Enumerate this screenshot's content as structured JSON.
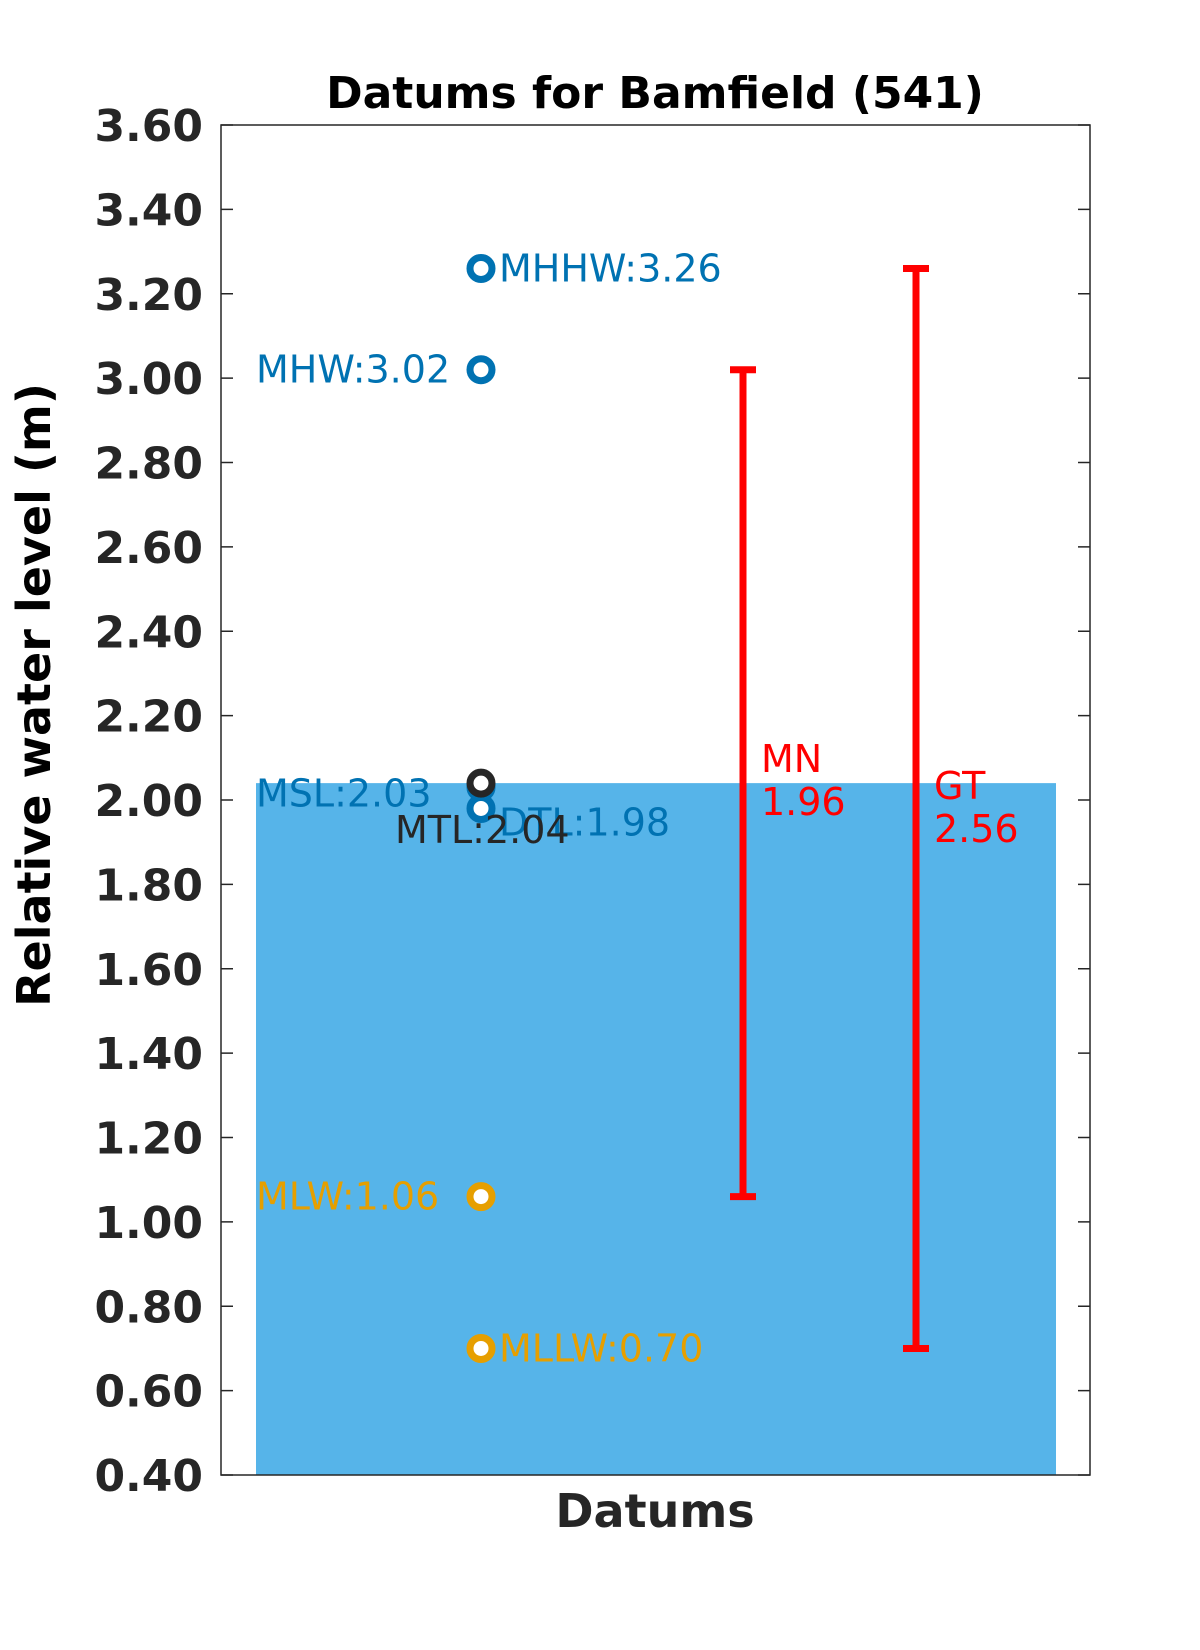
{
  "chart_data": {
    "type": "bar",
    "title": "Datums for Bamfield (541)",
    "xlabel": "Datums",
    "ylabel": "Relative water level (m)",
    "ylim": [
      0.4,
      3.6
    ],
    "yticks": [
      "0.40",
      "0.60",
      "0.80",
      "1.00",
      "1.20",
      "1.40",
      "1.60",
      "1.80",
      "2.00",
      "2.20",
      "2.40",
      "2.60",
      "2.80",
      "3.00",
      "3.20",
      "3.40",
      "3.60"
    ],
    "bar": {
      "value": 2.04,
      "color": "#56B4E9"
    },
    "datums": [
      {
        "name": "MHHW",
        "value": 3.26,
        "label": "MHHW:3.26",
        "color": "#0072B2",
        "label_side": "right"
      },
      {
        "name": "MHW",
        "value": 3.02,
        "label": "MHW:3.02",
        "color": "#0072B2",
        "label_side": "left"
      },
      {
        "name": "MSL",
        "value": 2.03,
        "label": "MSL:2.03",
        "color": "#0072B2",
        "label_side": "left"
      },
      {
        "name": "DTL",
        "value": 1.98,
        "label": "DTL:1.98",
        "color": "#0072B2",
        "label_side": "right"
      },
      {
        "name": "MTL",
        "value": 2.04,
        "label": "MTL:2.04",
        "color": "#262626",
        "label_side": "below"
      },
      {
        "name": "MLW",
        "value": 1.06,
        "label": "MLW:1.06",
        "color": "#E69F00",
        "label_side": "left"
      },
      {
        "name": "MLLW",
        "value": 0.7,
        "label": "MLLW:0.70",
        "color": "#E69F00",
        "label_side": "right"
      }
    ],
    "ranges": [
      {
        "name": "MN",
        "label": "MN",
        "value_label": "1.96",
        "low": 1.06,
        "high": 3.02,
        "color": "#FF0000"
      },
      {
        "name": "GT",
        "label": "GT",
        "value_label": "2.56",
        "low": 0.7,
        "high": 3.26,
        "color": "#FF0000"
      }
    ],
    "grid": false
  }
}
